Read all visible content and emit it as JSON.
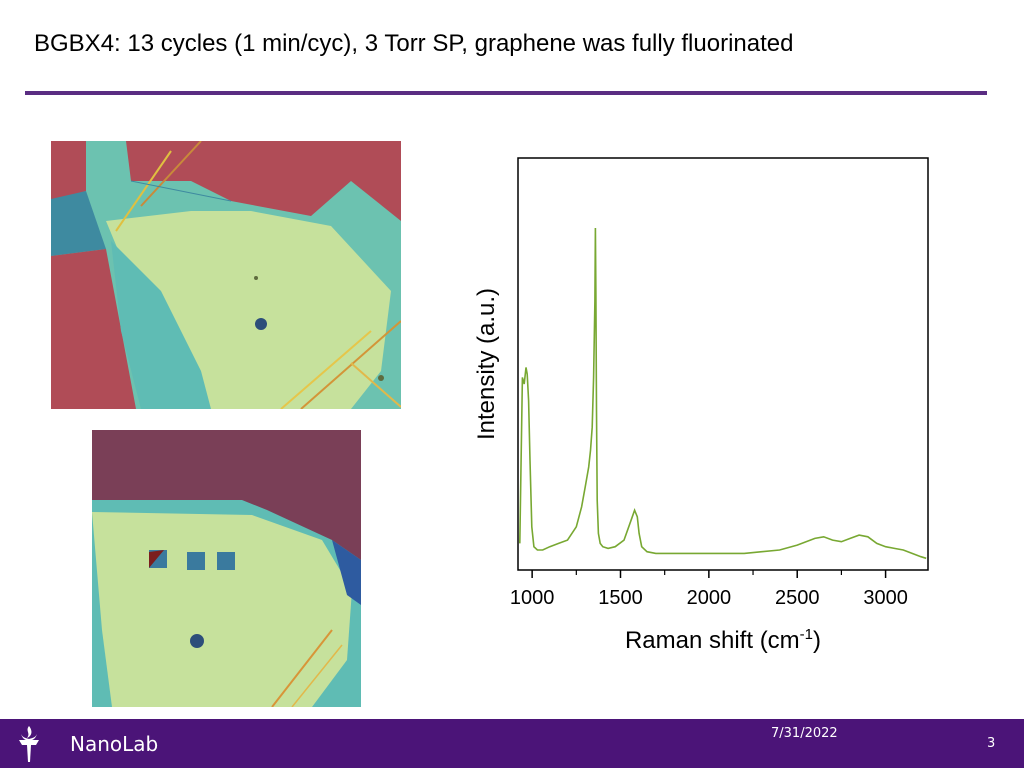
{
  "slide": {
    "title": "BGBX4: 13 cycles (1 min/cyc), 3 Torr SP, graphene was fully fluorinated"
  },
  "footer": {
    "org": "NanoLab",
    "date": "7/31/2022",
    "page_number": "3",
    "logo_icon": "torch-icon",
    "bar_color": "#4b1478"
  },
  "colors": {
    "accent_rule": "#5a2d82",
    "spectrum_line": "#78a832"
  },
  "chart_data": {
    "type": "line",
    "title": "",
    "xlabel": "Raman shift (cm",
    "xlabel_superscript": "-1",
    "xlabel_suffix": ")",
    "ylabel": "Intensity (a.u.)",
    "xlim": [
      920,
      3240
    ],
    "ylim": [
      0,
      1
    ],
    "x_ticks": [
      1000,
      1500,
      2000,
      2500,
      3000
    ],
    "x_tick_labels": [
      "1000",
      "1500",
      "2000",
      "2500",
      "3000"
    ],
    "y_ticks_shown": false,
    "grid": false,
    "legend": "none",
    "series": [
      {
        "x": [
          930,
          945,
          955,
          965,
          972,
          980,
          988,
          998,
          1010,
          1030,
          1060,
          1100,
          1150,
          1200,
          1250,
          1280,
          1300,
          1320,
          1330,
          1340,
          1348,
          1355,
          1358,
          1361,
          1364,
          1368,
          1375,
          1385,
          1400,
          1430,
          1470,
          1520,
          1560,
          1580,
          1595,
          1605,
          1620,
          1650,
          1700,
          1800,
          1900,
          2000,
          2100,
          2200,
          2300,
          2400,
          2500,
          2600,
          2650,
          2700,
          2750,
          2800,
          2850,
          2900,
          2950,
          3000,
          3050,
          3100,
          3150,
          3200,
          3230
        ],
        "y": [
          0.05,
          0.55,
          0.53,
          0.58,
          0.56,
          0.48,
          0.3,
          0.1,
          0.04,
          0.03,
          0.03,
          0.04,
          0.05,
          0.06,
          0.1,
          0.16,
          0.22,
          0.28,
          0.33,
          0.4,
          0.55,
          0.78,
          1.0,
          0.8,
          0.45,
          0.18,
          0.08,
          0.05,
          0.04,
          0.035,
          0.04,
          0.06,
          0.12,
          0.15,
          0.13,
          0.08,
          0.04,
          0.025,
          0.02,
          0.02,
          0.02,
          0.02,
          0.02,
          0.02,
          0.025,
          0.03,
          0.045,
          0.065,
          0.07,
          0.06,
          0.055,
          0.065,
          0.075,
          0.07,
          0.05,
          0.04,
          0.035,
          0.03,
          0.02,
          0.01,
          0.005
        ]
      }
    ]
  }
}
